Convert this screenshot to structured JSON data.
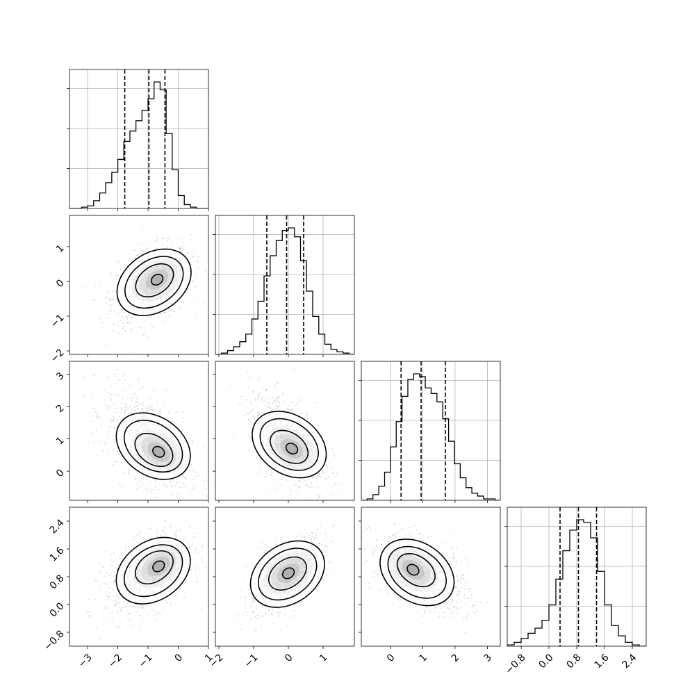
{
  "chart_data": {
    "type": "corner",
    "title": "",
    "colors": {
      "hist": "#000000",
      "density": "#000000",
      "points": "#888888",
      "grid": "#b0b0b0",
      "axes": "#000000"
    },
    "quantile_lines": "dashed",
    "grid": true,
    "variables": [
      {
        "index": 0,
        "range": [
          -3.6,
          1.0
        ],
        "ticks": [
          -3,
          -2,
          -1,
          0,
          1
        ],
        "tick_labels": [
          "−3",
          "−2",
          "−1",
          "0",
          "1"
        ],
        "quantiles": [
          -1.77,
          -0.97,
          -0.44
        ],
        "hist_x": [
          -3.6,
          -3.4,
          -3.2,
          -3.0,
          -2.8,
          -2.6,
          -2.4,
          -2.2,
          -2.0,
          -1.8,
          -1.6,
          -1.4,
          -1.2,
          -1.0,
          -0.8,
          -0.6,
          -0.4,
          -0.2,
          0.0,
          0.2,
          0.4,
          0.6,
          0.8
        ],
        "hist_y": [
          0,
          0,
          0.01,
          0.02,
          0.06,
          0.12,
          0.2,
          0.28,
          0.38,
          0.52,
          0.6,
          0.68,
          0.76,
          0.85,
          0.98,
          0.92,
          0.58,
          0.3,
          0.1,
          0.03,
          0.01,
          0,
          0
        ]
      },
      {
        "index": 1,
        "range": [
          -2.1,
          1.9
        ],
        "ticks": [
          -2,
          -1,
          0,
          1
        ],
        "tick_labels": [
          "−2",
          "−1",
          "0",
          "1"
        ],
        "quantiles": [
          -0.62,
          -0.05,
          0.44
        ],
        "hist_x": [
          -2.1,
          -1.925,
          -1.75,
          -1.575,
          -1.4,
          -1.225,
          -1.05,
          -0.875,
          -0.7,
          -0.525,
          -0.35,
          -0.175,
          0.0,
          0.175,
          0.35,
          0.525,
          0.7,
          0.875,
          1.05,
          1.225,
          1.4,
          1.575,
          1.75
        ],
        "hist_y": [
          0,
          0.01,
          0.03,
          0.06,
          0.1,
          0.16,
          0.28,
          0.42,
          0.62,
          0.78,
          0.9,
          0.98,
          1.0,
          0.93,
          0.74,
          0.5,
          0.3,
          0.16,
          0.08,
          0.04,
          0.02,
          0.01,
          0
        ]
      },
      {
        "index": 2,
        "range": [
          -0.9,
          3.4
        ],
        "ticks": [
          0,
          1,
          2,
          3
        ],
        "tick_labels": [
          "0",
          "1",
          "2",
          "3"
        ],
        "quantiles": [
          0.33,
          0.95,
          1.7
        ],
        "hist_x": [
          -0.9,
          -0.72,
          -0.54,
          -0.36,
          -0.18,
          0.0,
          0.18,
          0.36,
          0.54,
          0.72,
          0.9,
          1.08,
          1.26,
          1.44,
          1.62,
          1.8,
          1.98,
          2.16,
          2.34,
          2.52,
          2.7,
          2.88,
          3.06,
          3.24
        ],
        "hist_y": [
          0,
          0.01,
          0.04,
          0.1,
          0.2,
          0.38,
          0.56,
          0.74,
          0.86,
          0.9,
          0.88,
          0.8,
          0.76,
          0.7,
          0.58,
          0.42,
          0.26,
          0.16,
          0.09,
          0.05,
          0.03,
          0.01,
          0.01,
          0
        ]
      },
      {
        "index": 3,
        "range": [
          -1.2,
          2.8
        ],
        "ticks": [
          -0.8,
          0.0,
          0.8,
          1.6,
          2.4
        ],
        "tick_labels": [
          "−0.8",
          "0.0",
          "0.8",
          "1.6",
          "2.4"
        ],
        "quantiles": [
          0.32,
          0.85,
          1.37
        ],
        "hist_x": [
          -1.2,
          -1.0,
          -0.8,
          -0.6,
          -0.4,
          -0.2,
          0.0,
          0.2,
          0.4,
          0.6,
          0.8,
          1.0,
          1.2,
          1.4,
          1.6,
          1.8,
          2.0,
          2.2,
          2.4,
          2.6
        ],
        "hist_y": [
          0.01,
          0.03,
          0.06,
          0.1,
          0.14,
          0.2,
          0.32,
          0.52,
          0.74,
          0.9,
          0.98,
          0.96,
          0.84,
          0.58,
          0.32,
          0.16,
          0.08,
          0.03,
          0.01,
          0
        ]
      }
    ],
    "pairs": [
      {
        "x": 0,
        "y": 1,
        "mean": [
          -0.9,
          -0.1
        ],
        "sd": [
          0.65,
          0.55
        ],
        "corr": 0.35,
        "peak": [
          -0.7,
          0.05
        ]
      },
      {
        "x": 0,
        "y": 2,
        "mean": [
          -1.0,
          0.95
        ],
        "sd": [
          0.7,
          0.75
        ],
        "corr": -0.5,
        "peak": [
          -0.65,
          0.6
        ]
      },
      {
        "x": 1,
        "y": 2,
        "mean": [
          -0.05,
          0.95
        ],
        "sd": [
          0.55,
          0.75
        ],
        "corr": -0.5,
        "peak": [
          0.1,
          0.7
        ]
      },
      {
        "x": 0,
        "y": 3,
        "mean": [
          -1.0,
          0.85
        ],
        "sd": [
          0.7,
          0.55
        ],
        "corr": 0.4,
        "peak": [
          -0.65,
          1.1
        ]
      },
      {
        "x": 1,
        "y": 3,
        "mean": [
          -0.05,
          0.85
        ],
        "sd": [
          0.55,
          0.55
        ],
        "corr": 0.6,
        "peak": [
          0.0,
          0.9
        ]
      },
      {
        "x": 2,
        "y": 3,
        "mean": [
          0.95,
          0.85
        ],
        "sd": [
          0.75,
          0.55
        ],
        "corr": -0.5,
        "peak": [
          0.7,
          1.0
        ]
      }
    ]
  }
}
